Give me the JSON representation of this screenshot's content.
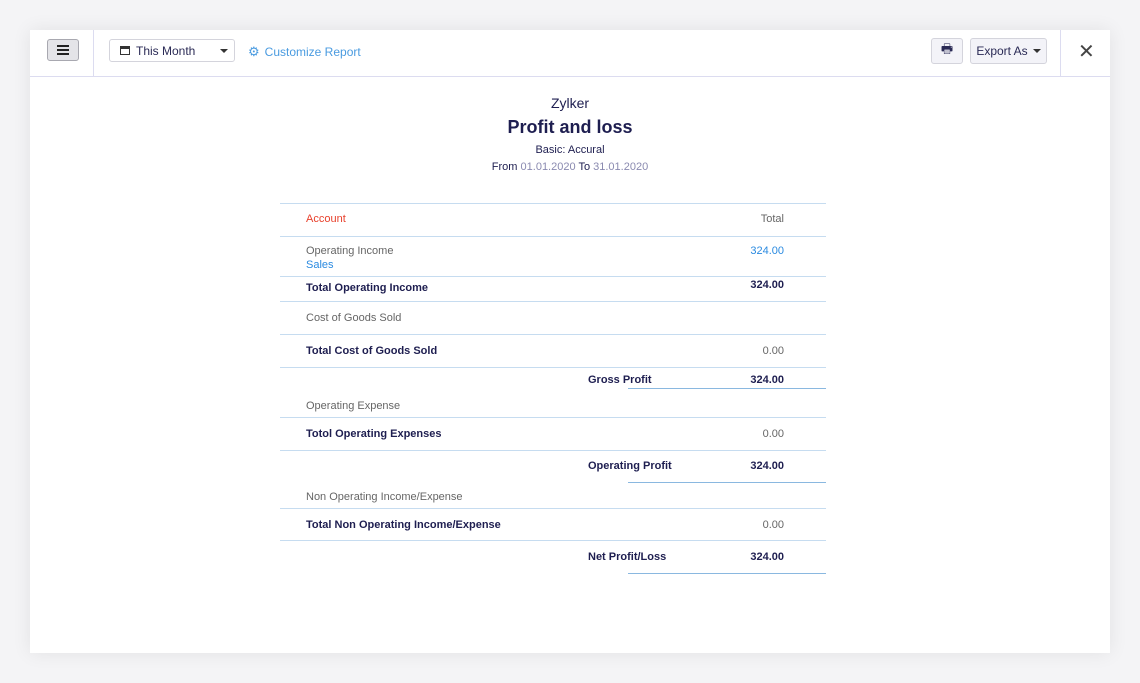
{
  "toolbar": {
    "period": "This Month",
    "customize": "Customize Report",
    "export": "Export As"
  },
  "report": {
    "company": "Zylker",
    "title": "Profit and loss",
    "basis": "Basic: Accural",
    "from_label": "From",
    "from": "01.01.2020",
    "to_label": "To",
    "to": "31.01.2020"
  },
  "table": {
    "col_account": "Account",
    "col_total": "Total",
    "operating_income": "Operating Income",
    "sales": "Sales",
    "sales_value": "324.00",
    "total_operating_income": "Total Operating Income",
    "total_operating_income_value": "324.00",
    "cogs": "Cost of Goods Sold",
    "total_cogs": "Total Cost of Goods Sold",
    "total_cogs_value": "0.00",
    "gross_profit": "Gross Profit",
    "gross_profit_value": "324.00",
    "operating_expense": "Operating Expense",
    "total_operating_expenses": "Totol Operating Expenses",
    "total_operating_expenses_value": "0.00",
    "operating_profit": "Operating Profit",
    "operating_profit_value": "324.00",
    "non_operating": "Non Operating Income/Expense",
    "total_non_operating": "Total Non Operating Income/Expense",
    "total_non_operating_value": "0.00",
    "net_profit": "Net Profit/Loss",
    "net_profit_value": "324.00"
  },
  "colors": {
    "accent": "#4a9be0",
    "account_header": "#e8412c",
    "text": "#1e1e50"
  }
}
